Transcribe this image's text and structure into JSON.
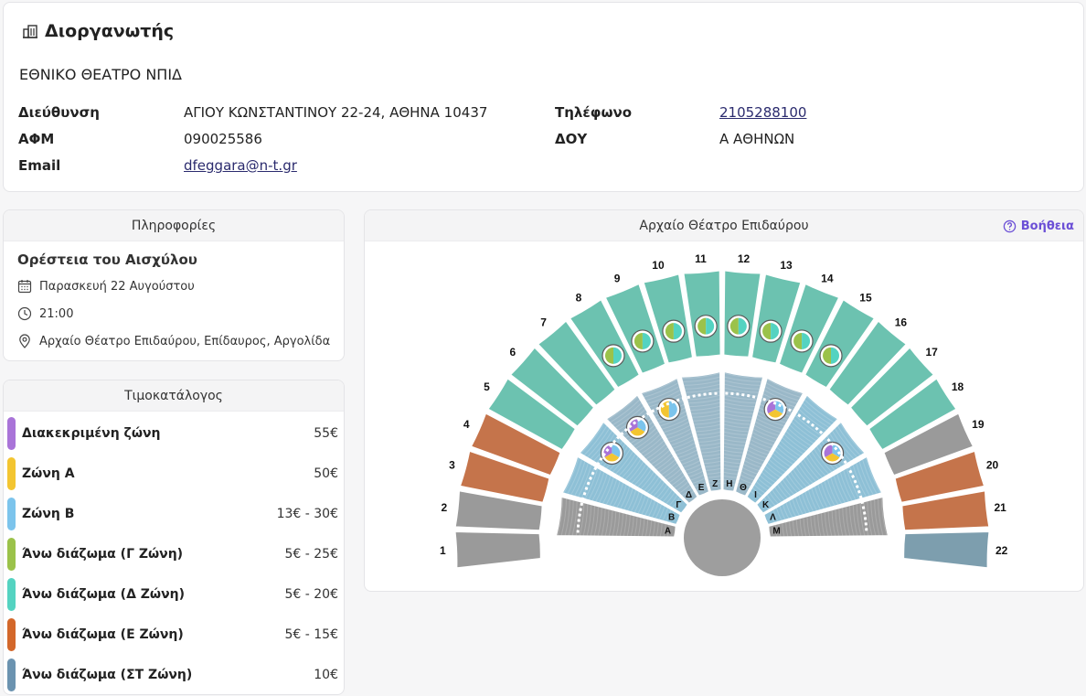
{
  "organizer": {
    "heading": "Διοργανωτής",
    "name": "ΕΘΝΙΚΟ ΘΕΑΤΡΟ ΝΠΙΔ",
    "left_fields": [
      {
        "label": "Διεύθυνση",
        "value": "ΑΓΙΟΥ ΚΩΝΣΤΑΝΤΙΝΟΥ 22-24, ΑΘΗΝΑ 10437"
      },
      {
        "label": "ΑΦΜ",
        "value": "090025586"
      },
      {
        "label": "Email",
        "value": "dfeggara@n-t.gr"
      }
    ],
    "right_fields": [
      {
        "label": "Τηλέφωνο",
        "value": "2105288100"
      },
      {
        "label": "ΔΟΥ",
        "value": "Α ΑΘΗΝΩΝ"
      }
    ]
  },
  "info": {
    "header": "Πληροφορίες",
    "title": "Ορέστεια του Αισχύλου",
    "date": "Παρασκευή 22 Αυγούστου",
    "time": "21:00",
    "venue": "Αρχαίο Θέατρο Επιδαύρου, Επίδαυρος, Αργολίδα"
  },
  "pricelist": {
    "header": "Τιμοκατάλογος",
    "items": [
      {
        "name": "Διακεκριμένη ζώνη",
        "price": "55€",
        "color": "#a974d8"
      },
      {
        "name": "Ζώνη Α",
        "price": "50€",
        "color": "#f3c531"
      },
      {
        "name": "Ζώνη Β",
        "price": "13€ - 30€",
        "color": "#7cc4ec"
      },
      {
        "name": "Άνω διάζωμα (Γ Ζώνη)",
        "price": "5€ - 25€",
        "color": "#9bc24a"
      },
      {
        "name": "Άνω διάζωμα (Δ Ζώνη)",
        "price": "5€ - 20€",
        "color": "#54d3c1"
      },
      {
        "name": "Άνω διάζωμα (Ε Ζώνη)",
        "price": "5€ - 15€",
        "color": "#d3672a"
      },
      {
        "name": "Άνω διάζωμα (ΣΤ Ζώνη)",
        "price": "10€",
        "color": "#6b93b0"
      }
    ]
  },
  "map": {
    "title": "Αρχαίο Θέατρο Επιδαύρου",
    "help_label": "Βοήθεια",
    "colors": {
      "grey": "#9a9a9a",
      "orange": "#c5744b",
      "teal": "#6cc2b0",
      "slate": "#7d9eae",
      "light_blue": "#8ec0d6",
      "dark_blue": "#9ab8c8",
      "orchestra": "#9e9e9e"
    },
    "upper_sectors": [
      {
        "label": "1",
        "zone": "grey"
      },
      {
        "label": "2",
        "zone": "grey"
      },
      {
        "label": "3",
        "zone": "orange"
      },
      {
        "label": "4",
        "zone": "orange"
      },
      {
        "label": "5",
        "zone": "teal"
      },
      {
        "label": "6",
        "zone": "teal"
      },
      {
        "label": "7",
        "zone": "teal"
      },
      {
        "label": "8",
        "zone": "teal",
        "badge": [
          "#9bc24a",
          "#54d3c1"
        ]
      },
      {
        "label": "9",
        "zone": "teal",
        "badge": [
          "#9bc24a",
          "#54d3c1"
        ]
      },
      {
        "label": "10",
        "zone": "teal",
        "badge": [
          "#9bc24a",
          "#54d3c1"
        ]
      },
      {
        "label": "11",
        "zone": "teal",
        "badge": [
          "#9bc24a",
          "#54d3c1"
        ]
      },
      {
        "label": "12",
        "zone": "teal",
        "badge": [
          "#9bc24a",
          "#54d3c1"
        ]
      },
      {
        "label": "13",
        "zone": "teal",
        "badge": [
          "#9bc24a",
          "#54d3c1"
        ]
      },
      {
        "label": "14",
        "zone": "teal",
        "badge": [
          "#9bc24a",
          "#54d3c1"
        ]
      },
      {
        "label": "15",
        "zone": "teal",
        "badge": [
          "#9bc24a",
          "#54d3c1"
        ]
      },
      {
        "label": "16",
        "zone": "teal"
      },
      {
        "label": "17",
        "zone": "teal"
      },
      {
        "label": "18",
        "zone": "teal"
      },
      {
        "label": "19",
        "zone": "grey"
      },
      {
        "label": "20",
        "zone": "orange"
      },
      {
        "label": "21",
        "zone": "orange"
      },
      {
        "label": "22",
        "zone": "slate"
      }
    ],
    "lower_sectors": [
      {
        "label": "Α",
        "zone": "grey"
      },
      {
        "label": "Β",
        "zone": "light_blue"
      },
      {
        "label": "Γ",
        "zone": "light_blue",
        "badge": [
          "#a974d8",
          "#f3c531",
          "#7cc4ec"
        ]
      },
      {
        "label": "Δ",
        "zone": "dark_blue",
        "badge": [
          "#a974d8",
          "#f3c531",
          "#7cc4ec"
        ]
      },
      {
        "label": "Ε",
        "zone": "dark_blue",
        "badge": [
          "#f3c531",
          "#7cc4ec"
        ]
      },
      {
        "label": "Ζ",
        "zone": "dark_blue"
      },
      {
        "label": "Η",
        "zone": "dark_blue"
      },
      {
        "label": "Θ",
        "zone": "dark_blue",
        "badge": [
          "#a974d8",
          "#f3c531",
          "#7cc4ec"
        ]
      },
      {
        "label": "Ι",
        "zone": "light_blue"
      },
      {
        "label": "Κ",
        "zone": "light_blue",
        "badge": [
          "#a974d8",
          "#f3c531",
          "#7cc4ec"
        ]
      },
      {
        "label": "Λ",
        "zone": "light_blue"
      },
      {
        "label": "Μ",
        "zone": "grey"
      }
    ]
  }
}
